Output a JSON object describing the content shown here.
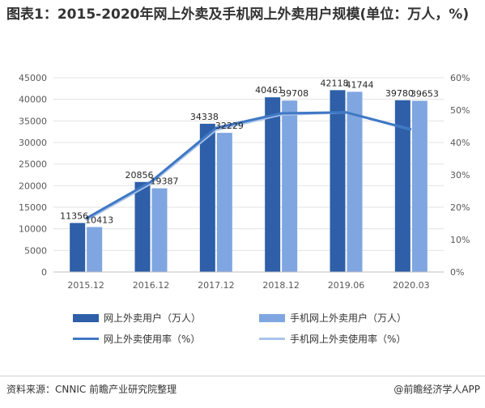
{
  "title": "图表1：2015-2020年网上外卖及手机网上外卖用户规模(单位：万人，%)",
  "source": "资料来源：CNNIC 前瞻产业研究院整理",
  "credit": "@前瞻经济学人APP",
  "colors": {
    "online_users": "#2e5fa8",
    "mobile_users": "#7fa6e0",
    "online_rate": "#3f78c4",
    "mobile_rate": "#a9c3ea"
  },
  "chart_data": {
    "type": "bar",
    "categories": [
      "2015.12",
      "2016.12",
      "2017.12",
      "2018.12",
      "2019.06",
      "2020.03"
    ],
    "y_left_ticks": [
      "0",
      "5000",
      "10000",
      "15000",
      "20000",
      "25000",
      "30000",
      "35000",
      "40000",
      "45000"
    ],
    "y_right_ticks": [
      "0%",
      "10%",
      "20%",
      "30%",
      "40%",
      "50%",
      "60%"
    ],
    "ylim_left": [
      0,
      45000
    ],
    "ylim_right": [
      0,
      60
    ],
    "series": [
      {
        "name": "网上外卖用户（万人）",
        "axis": "left",
        "kind": "bar",
        "values": [
          11356,
          20856,
          34338,
          40461,
          42118,
          39780
        ]
      },
      {
        "name": "手机网上外卖用户（万人）",
        "axis": "left",
        "kind": "bar",
        "values": [
          10413,
          19387,
          32229,
          39708,
          41744,
          39653
        ]
      },
      {
        "name": "网上外卖使用率（%）",
        "axis": "right",
        "kind": "line",
        "values": [
          16.5,
          27.9,
          44.5,
          49.0,
          49.3,
          44.0
        ]
      },
      {
        "name": "手机网上外卖使用率（%）",
        "axis": "right",
        "kind": "line",
        "values": [
          16.0,
          27.4,
          43.9,
          48.6,
          49.3,
          44.0
        ]
      }
    ],
    "legend_position": "bottom"
  }
}
